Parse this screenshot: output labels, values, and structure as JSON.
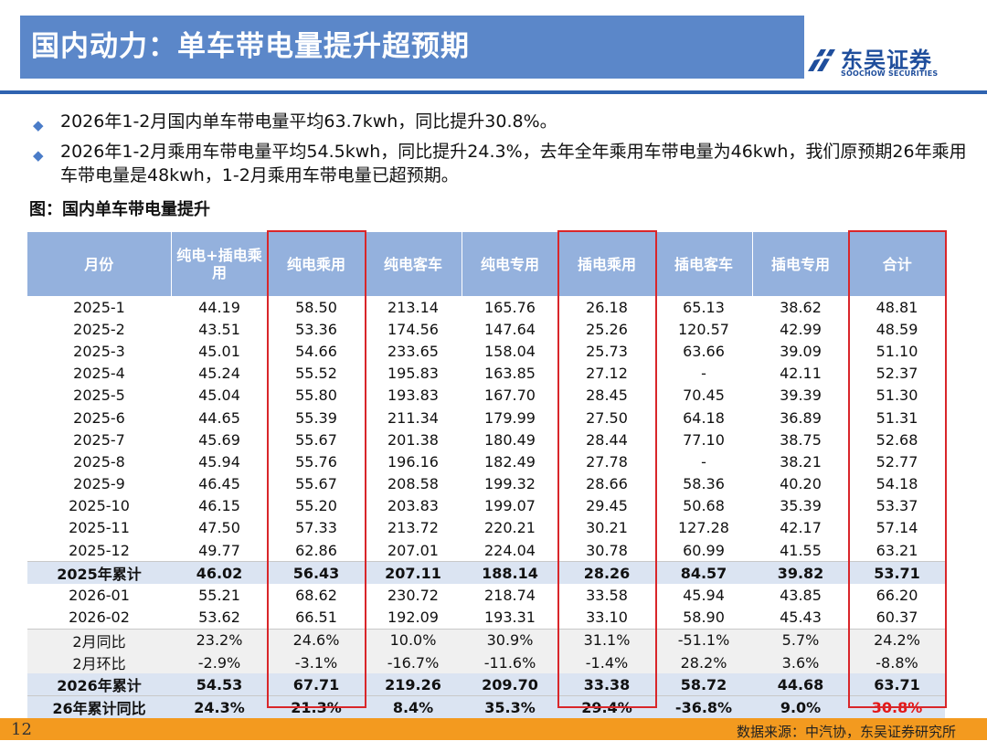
{
  "header": {
    "title": "国内动力：单车带电量提升超预期",
    "logo_cn": "东吴证券",
    "logo_en": "SOOCHOW SECURITIES"
  },
  "bullets": [
    "2026年1-2月国内单车带电量平均63.7kwh，同比提升30.8%。",
    "2026年1-2月乘用车带电量平均54.5kwh，同比提升24.3%，去年全年乘用车带电量为46kwh，我们原预期26年乘用车带电量是48kwh，1-2月乘用车带电量已超预期。"
  ],
  "figure_caption": "图：国内单车带电量提升",
  "table": {
    "headers": [
      "月份",
      "纯电+插电乘用",
      "纯电乘用",
      "纯电客车",
      "纯电专用",
      "插电乘用",
      "插电客车",
      "插电专用",
      "合计"
    ],
    "rows": [
      [
        "2025-1",
        "44.19",
        "58.50",
        "213.14",
        "165.76",
        "26.18",
        "65.13",
        "38.62",
        "48.81"
      ],
      [
        "2025-2",
        "43.51",
        "53.36",
        "174.56",
        "147.64",
        "25.26",
        "120.57",
        "42.99",
        "48.59"
      ],
      [
        "2025-3",
        "45.01",
        "54.66",
        "233.65",
        "158.04",
        "25.73",
        "63.66",
        "39.09",
        "51.10"
      ],
      [
        "2025-4",
        "45.24",
        "55.52",
        "195.83",
        "163.85",
        "27.12",
        "-",
        "42.11",
        "52.37"
      ],
      [
        "2025-5",
        "45.04",
        "55.80",
        "193.83",
        "167.70",
        "28.45",
        "70.45",
        "39.39",
        "51.30"
      ],
      [
        "2025-6",
        "44.65",
        "55.39",
        "211.34",
        "179.99",
        "27.50",
        "64.18",
        "36.89",
        "51.31"
      ],
      [
        "2025-7",
        "45.69",
        "55.67",
        "201.38",
        "180.49",
        "28.44",
        "77.10",
        "38.75",
        "52.68"
      ],
      [
        "2025-8",
        "45.94",
        "55.76",
        "196.16",
        "182.49",
        "27.78",
        "-",
        "38.21",
        "52.77"
      ],
      [
        "2025-9",
        "46.45",
        "55.67",
        "208.58",
        "199.32",
        "28.66",
        "58.36",
        "40.20",
        "54.18"
      ],
      [
        "2025-10",
        "46.15",
        "55.20",
        "203.83",
        "199.07",
        "29.45",
        "50.68",
        "35.39",
        "53.37"
      ],
      [
        "2025-11",
        "47.50",
        "57.33",
        "213.72",
        "220.21",
        "30.21",
        "127.28",
        "42.17",
        "57.14"
      ],
      [
        "2025-12",
        "49.77",
        "62.86",
        "207.01",
        "224.04",
        "30.78",
        "60.99",
        "41.55",
        "63.21"
      ],
      [
        "2025年累计",
        "46.02",
        "56.43",
        "207.11",
        "188.14",
        "28.26",
        "84.57",
        "39.82",
        "53.71"
      ],
      [
        "2026-01",
        "55.21",
        "68.62",
        "230.72",
        "218.74",
        "33.58",
        "45.94",
        "43.85",
        "66.20"
      ],
      [
        "2026-02",
        "53.62",
        "66.51",
        "192.09",
        "193.31",
        "33.10",
        "58.90",
        "45.43",
        "60.37"
      ],
      [
        "2月同比",
        "23.2%",
        "24.6%",
        "10.0%",
        "30.9%",
        "31.1%",
        "-51.1%",
        "5.7%",
        "24.2%"
      ],
      [
        "2月环比",
        "-2.9%",
        "-3.1%",
        "-16.7%",
        "-11.6%",
        "-1.4%",
        "28.2%",
        "3.6%",
        "-8.8%"
      ],
      [
        "2026年累计",
        "54.53",
        "67.71",
        "219.26",
        "209.70",
        "33.38",
        "58.72",
        "44.68",
        "63.71"
      ],
      [
        "26年累计同比",
        "24.3%",
        "21.3%",
        "8.4%",
        "35.3%",
        "29.4%",
        "-36.8%",
        "9.0%",
        "30.8%"
      ]
    ]
  },
  "colors": {
    "title_bg": "#5b87c9",
    "rule": "#2f63b0",
    "header_bg": "#94b1dd",
    "total_row_bg": "#dbe4f2",
    "highlight_border": "#d9262a",
    "footer_bg": "#f39a1f"
  },
  "footer": {
    "page_number": "12",
    "source": "数据来源：中汽协，东吴证券研究所"
  }
}
